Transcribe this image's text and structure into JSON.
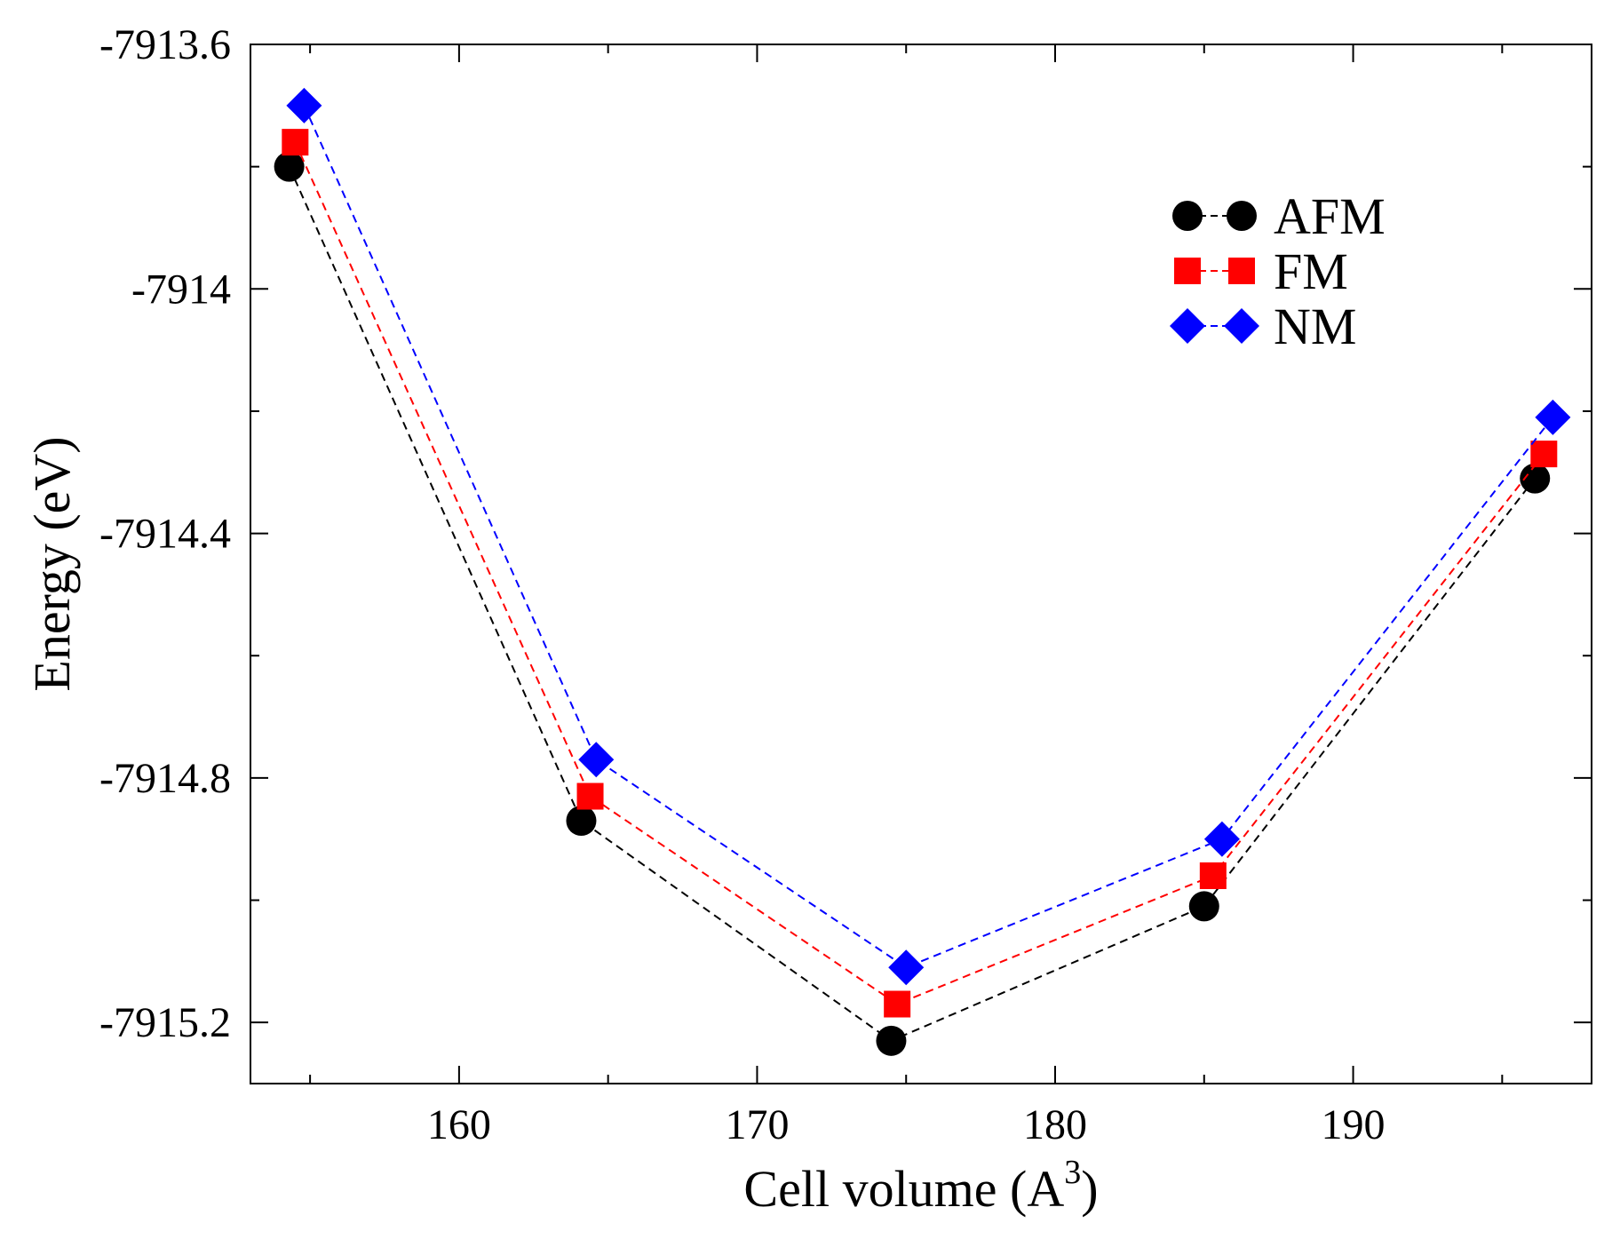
{
  "chart_data": {
    "type": "line",
    "title": "",
    "xlabel": "Cell volume (A",
    "xlabel_superscript": "3",
    "xlabel_suffix": ")",
    "ylabel": "Energy (eV)",
    "xlim": [
      153,
      198
    ],
    "ylim": [
      -7915.3,
      -7913.6
    ],
    "x_ticks": [
      160,
      170,
      180,
      190
    ],
    "x_tick_labels": [
      "160",
      "170",
      "180",
      "190"
    ],
    "y_ticks": [
      -7913.6,
      -7914,
      -7914.4,
      -7914.8,
      -7915.2
    ],
    "y_tick_labels": [
      "-7913.6",
      "-7914",
      "-7914.4",
      "-7914.8",
      "-7915.2"
    ],
    "grid": false,
    "legend_position": "top-right",
    "series": [
      {
        "name": "AFM",
        "marker": "circle",
        "color": "#000000",
        "line_style": "dashed",
        "x": [
          154.3,
          164.1,
          174.5,
          185.0,
          196.1
        ],
        "y": [
          -7913.8,
          -7914.87,
          -7915.23,
          -7915.01,
          -7914.31
        ]
      },
      {
        "name": "FM",
        "marker": "square",
        "color": "#ff0000",
        "line_style": "dashed",
        "x": [
          154.5,
          164.4,
          174.7,
          185.3,
          196.4
        ],
        "y": [
          -7913.76,
          -7914.83,
          -7915.17,
          -7914.96,
          -7914.27
        ]
      },
      {
        "name": "NM",
        "marker": "diamond",
        "color": "#0000ff",
        "line_style": "dashed",
        "x": [
          154.8,
          164.6,
          175.0,
          185.6,
          196.7
        ],
        "y": [
          -7913.7,
          -7914.77,
          -7915.11,
          -7914.9,
          -7914.21
        ]
      }
    ]
  }
}
